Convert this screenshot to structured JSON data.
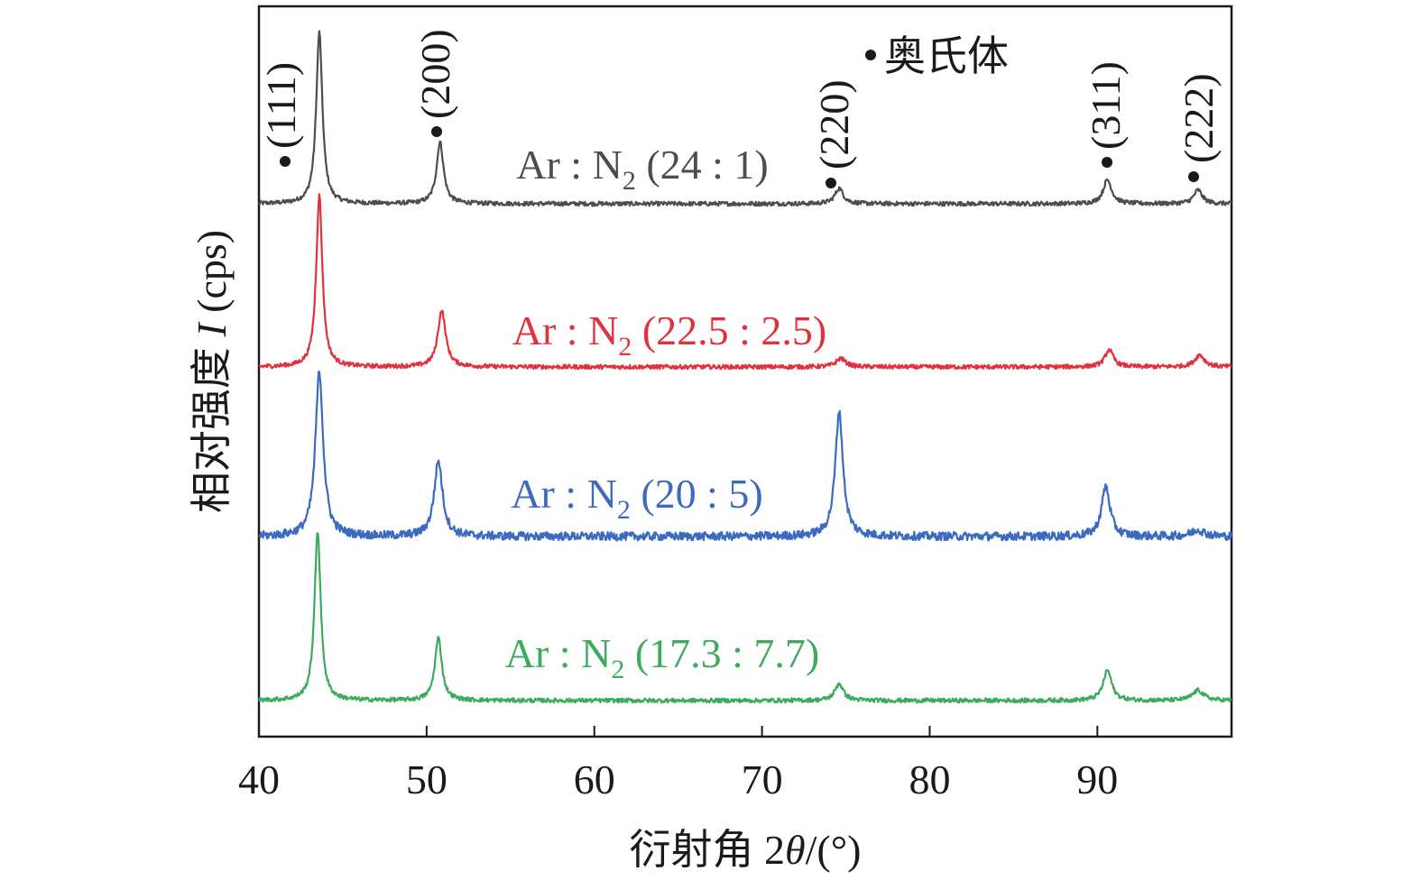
{
  "chart_data": {
    "type": "line",
    "xlabel": {
      "prefix": "衍射角 2",
      "theta": "θ",
      "suffix": "/(°)"
    },
    "ylabel": {
      "prefix": "相对强度 ",
      "italic": "I",
      "suffix": " (cps)"
    },
    "xlim": [
      40,
      98
    ],
    "x_ticks": [
      40,
      50,
      60,
      70,
      80,
      90
    ],
    "y_ticks_shown": false,
    "grid": false,
    "marker_legend": {
      "marker": "•",
      "text": "奥氏体",
      "placement": "top-center"
    },
    "peaks": [
      {
        "label": "(111)",
        "x": 43.6
      },
      {
        "label": "(200)",
        "x": 50.8
      },
      {
        "label": "(220)",
        "x": 74.6
      },
      {
        "label": "(311)",
        "x": 90.6
      },
      {
        "label": "(222)",
        "x": 96.0
      }
    ],
    "series": [
      {
        "name_prefix": "Ar : N",
        "name_sub": "2",
        "name_suffix": " (24 : 1)",
        "color": "#4d4d4d",
        "baseline": 0,
        "peaks": [
          {
            "x": 43.6,
            "height": 1.0,
            "width": 0.22
          },
          {
            "x": 50.8,
            "height": 0.36,
            "width": 0.25
          },
          {
            "x": 74.6,
            "height": 0.09,
            "width": 0.3
          },
          {
            "x": 90.6,
            "height": 0.14,
            "width": 0.3
          },
          {
            "x": 96.0,
            "height": 0.08,
            "width": 0.3
          }
        ]
      },
      {
        "name_prefix": "Ar : N",
        "name_sub": "2",
        "name_suffix": " (22.5 : 2.5)",
        "color": "#e0323c",
        "baseline": 0,
        "peaks": [
          {
            "x": 43.6,
            "height": 1.0,
            "width": 0.22
          },
          {
            "x": 50.9,
            "height": 0.33,
            "width": 0.28
          },
          {
            "x": 74.7,
            "height": 0.05,
            "width": 0.35
          },
          {
            "x": 90.7,
            "height": 0.1,
            "width": 0.3
          },
          {
            "x": 96.1,
            "height": 0.07,
            "width": 0.35
          }
        ]
      },
      {
        "name_prefix": "Ar : N",
        "name_sub": "2",
        "name_suffix": " (20 : 5)",
        "color": "#3b6ac0",
        "baseline": 0,
        "peaks": [
          {
            "x": 43.6,
            "height": 0.98,
            "width": 0.28
          },
          {
            "x": 50.7,
            "height": 0.45,
            "width": 0.3
          },
          {
            "x": 74.6,
            "height": 0.74,
            "width": 0.28
          },
          {
            "x": 90.5,
            "height": 0.3,
            "width": 0.3
          },
          {
            "x": 96.0,
            "height": 0.04,
            "width": 0.45
          }
        ]
      },
      {
        "name_prefix": "Ar : N",
        "name_sub": "2",
        "name_suffix": " (17.3 : 7.7)",
        "color": "#3daa5c",
        "baseline": 0,
        "peaks": [
          {
            "x": 43.5,
            "height": 1.0,
            "width": 0.22
          },
          {
            "x": 50.7,
            "height": 0.37,
            "width": 0.25
          },
          {
            "x": 74.6,
            "height": 0.1,
            "width": 0.3
          },
          {
            "x": 90.6,
            "height": 0.18,
            "width": 0.3
          },
          {
            "x": 96.0,
            "height": 0.06,
            "width": 0.4
          }
        ]
      }
    ]
  }
}
